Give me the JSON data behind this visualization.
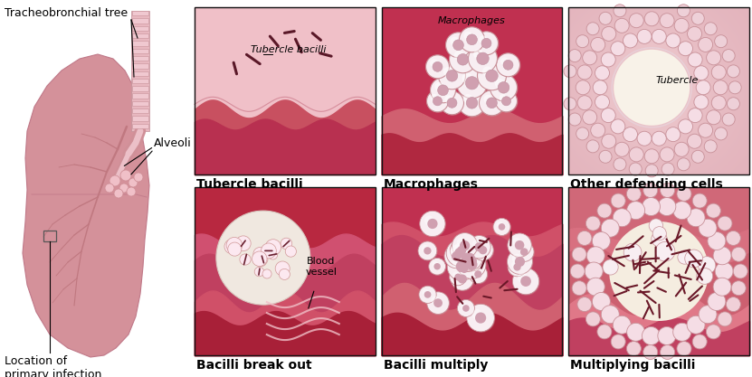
{
  "bg_color": "#ffffff",
  "panel_border_color": "#111111",
  "panel_labels": [
    "Tubercle bacilli",
    "Macrophages",
    "Other defending cells",
    "Bacilli break out",
    "Bacilli multiply",
    "Multiplying bacilli"
  ],
  "panel_label_fontsize": 10,
  "lung_color_main": "#d4919a",
  "lung_color_dark": "#c07888",
  "lung_color_light": "#e8b8c0",
  "trachea_color": "#e0b0b8",
  "annotation_fontsize": 9,
  "panel_pink_dark": "#b83050",
  "panel_pink_mid": "#d06878",
  "panel_pink_light": "#f0c0c8",
  "panel_tissue_light": "#f8e8ec",
  "cell_color": "#f5e8ec",
  "cell_edge": "#c89098"
}
